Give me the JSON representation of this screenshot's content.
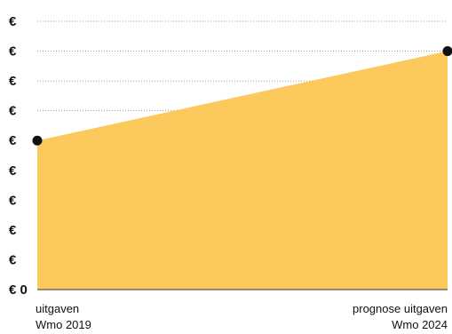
{
  "chart_data": {
    "type": "area",
    "title": "",
    "xlabel": "",
    "ylabel": "",
    "categories": [
      "uitgaven Wmo 2019",
      "prognose uitgaven Wmo 2024"
    ],
    "x_labels": [
      [
        "uitgaven",
        "Wmo 2019"
      ],
      [
        "prognose uitgaven",
        "Wmo 2024"
      ]
    ],
    "values": [
      5,
      8
    ],
    "ylim": [
      0,
      9
    ],
    "y_tick_labels": [
      "€ 0",
      "€",
      "€",
      "€",
      "€",
      "€",
      "€",
      "€",
      "€",
      "€"
    ],
    "grid": true,
    "legend": "none",
    "colors": {
      "area": "#fbc95c",
      "marker": "#111111",
      "grid": "#9a9a9a",
      "axis": "#333333"
    }
  }
}
